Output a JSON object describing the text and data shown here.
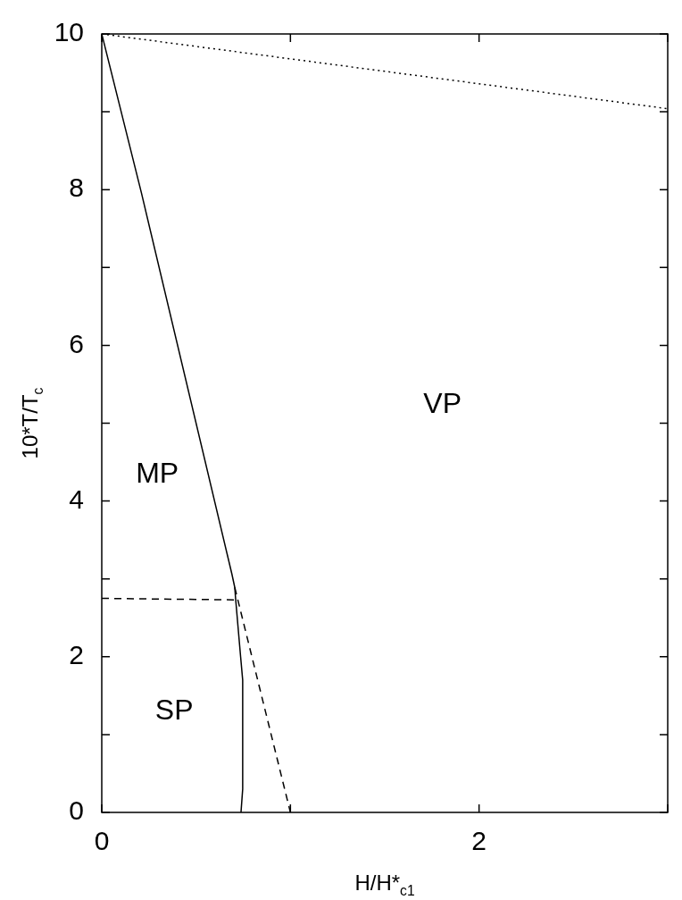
{
  "chart_data": {
    "type": "line",
    "xlabel": "H/H*$_{c1}$",
    "ylabel": "10*T/T$_{c}$",
    "xlim": [
      0,
      3
    ],
    "xticks": [
      0,
      {
        "value": 1,
        "label": null
      },
      2,
      {
        "value": 3,
        "label": null
      }
    ],
    "ylim": [
      0,
      10
    ],
    "yticks": [
      0,
      {
        "value": 1,
        "label": null
      },
      2,
      {
        "value": 3,
        "label": null
      },
      4,
      {
        "value": 5,
        "label": null
      },
      6,
      {
        "value": 7,
        "label": null
      },
      8,
      {
        "value": 9,
        "label": null
      },
      10
    ],
    "grid": false,
    "legend": false,
    "marker": "none",
    "series": [
      {
        "color": "#000000",
        "line_style": "solid",
        "x": [
          0,
          0.21,
          0.69,
          0.705,
          0.71,
          0.736,
          0.747,
          0.747,
          0.738
        ],
        "values": [
          10,
          7.96,
          3.06,
          2.89,
          2.73,
          2.0,
          1.7,
          0.3,
          0
        ]
      },
      {
        "color": "#000000",
        "line_style": "dashed",
        "x": [
          0.705,
          1.0
        ],
        "values": [
          2.89,
          0
        ]
      },
      {
        "color": "#000000",
        "line_style": "dashed",
        "x": [
          0,
          0.71
        ],
        "values": [
          2.75,
          2.73
        ]
      },
      {
        "color": "#000000",
        "line_style": "dotted",
        "x": [
          0,
          3
        ],
        "values": [
          10,
          9.04
        ]
      }
    ],
    "annotations": [
      "MP",
      "SP",
      "VP"
    ]
  }
}
